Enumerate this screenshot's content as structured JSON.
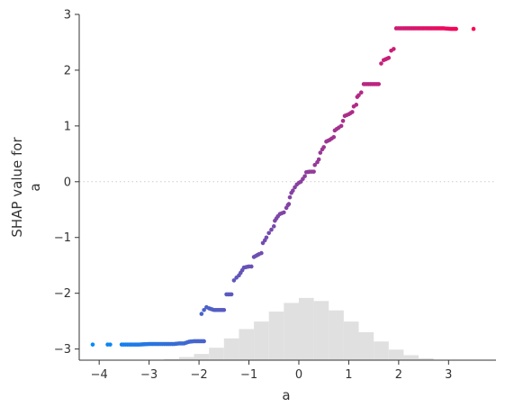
{
  "chart_data": {
    "type": "scatter",
    "title": "",
    "xlabel": "a",
    "ylabel_lines": [
      "SHAP value for",
      "a"
    ],
    "xlim": [
      -4.4,
      3.95
    ],
    "ylim": [
      -3.2,
      3.0
    ],
    "x_ticks": [
      -4,
      -3,
      -2,
      -1,
      0,
      1,
      2,
      3
    ],
    "y_ticks": [
      -3,
      -2,
      -1,
      0,
      1,
      2,
      3
    ],
    "x_tick_labels": [
      "−4",
      "−3",
      "−2",
      "−1",
      "0",
      "1",
      "2",
      "3"
    ],
    "y_tick_labels": [
      "−3",
      "−2",
      "−1",
      "0",
      "1",
      "2",
      "3"
    ],
    "zero_reference_line": true,
    "colormap": [
      "#008bfb",
      "#ff0052"
    ],
    "histogram_color": "#e0e0e0",
    "histogram": {
      "bin_edges": [
        -2.7,
        -2.4,
        -2.1,
        -1.8,
        -1.5,
        -1.2,
        -0.9,
        -0.6,
        -0.3,
        0.0,
        0.3,
        0.6,
        0.9,
        1.2,
        1.5,
        1.8,
        2.1,
        2.4,
        2.7
      ],
      "relative_heights": [
        0.02,
        0.05,
        0.1,
        0.2,
        0.35,
        0.5,
        0.62,
        0.78,
        0.92,
        1.0,
        0.95,
        0.8,
        0.62,
        0.45,
        0.3,
        0.17,
        0.08,
        0.03
      ]
    },
    "series": [
      {
        "points": [
          [
            -4.13,
            -2.92
          ],
          [
            -3.83,
            -2.92
          ],
          [
            -3.78,
            -2.92
          ],
          [
            -3.55,
            -2.92
          ],
          [
            -3.4,
            -2.92
          ],
          [
            -3.2,
            -2.92
          ],
          [
            -3.0,
            -2.91
          ],
          [
            -2.9,
            -2.91
          ],
          [
            -2.8,
            -2.91
          ],
          [
            -2.7,
            -2.91
          ],
          [
            -2.6,
            -2.91
          ],
          [
            -2.5,
            -2.91
          ],
          [
            -2.4,
            -2.9
          ],
          [
            -2.3,
            -2.9
          ],
          [
            -2.2,
            -2.87
          ],
          [
            -2.1,
            -2.86
          ],
          [
            -2.0,
            -2.86
          ],
          [
            -1.9,
            -2.86
          ],
          [
            -1.95,
            -2.37
          ],
          [
            -1.9,
            -2.3
          ],
          [
            -1.85,
            -2.25
          ],
          [
            -1.8,
            -2.27
          ],
          [
            -1.7,
            -2.3
          ],
          [
            -1.6,
            -2.3
          ],
          [
            -1.5,
            -2.3
          ],
          [
            -1.45,
            -2.02
          ],
          [
            -1.35,
            -2.02
          ],
          [
            -1.3,
            -1.77
          ],
          [
            -1.25,
            -1.72
          ],
          [
            -1.2,
            -1.68
          ],
          [
            -1.1,
            -1.54
          ],
          [
            -1.0,
            -1.52
          ],
          [
            -0.95,
            -1.52
          ],
          [
            -0.9,
            -1.35
          ],
          [
            -0.8,
            -1.3
          ],
          [
            -0.75,
            -1.28
          ],
          [
            -0.72,
            -1.1
          ],
          [
            -0.68,
            -1.05
          ],
          [
            -0.65,
            -1.0
          ],
          [
            -0.6,
            -0.92
          ],
          [
            -0.55,
            -0.86
          ],
          [
            -0.5,
            -0.8
          ],
          [
            -0.48,
            -0.7
          ],
          [
            -0.42,
            -0.62
          ],
          [
            -0.38,
            -0.58
          ],
          [
            -0.3,
            -0.55
          ],
          [
            -0.25,
            -0.47
          ],
          [
            -0.22,
            -0.42
          ],
          [
            -0.2,
            -0.4
          ],
          [
            -0.18,
            -0.28
          ],
          [
            -0.15,
            -0.2
          ],
          [
            -0.12,
            -0.16
          ],
          [
            -0.08,
            -0.1
          ],
          [
            -0.04,
            -0.05
          ],
          [
            0.0,
            -0.02
          ],
          [
            0.04,
            0.0
          ],
          [
            0.08,
            0.05
          ],
          [
            0.12,
            0.1
          ],
          [
            0.15,
            0.17
          ],
          [
            0.22,
            0.18
          ],
          [
            0.3,
            0.18
          ],
          [
            0.32,
            0.3
          ],
          [
            0.37,
            0.35
          ],
          [
            0.4,
            0.4
          ],
          [
            0.43,
            0.52
          ],
          [
            0.47,
            0.58
          ],
          [
            0.5,
            0.62
          ],
          [
            0.55,
            0.72
          ],
          [
            0.62,
            0.75
          ],
          [
            0.7,
            0.8
          ],
          [
            0.72,
            0.92
          ],
          [
            0.8,
            0.97
          ],
          [
            0.85,
            1.0
          ],
          [
            0.92,
            1.18
          ],
          [
            1.0,
            1.21
          ],
          [
            1.07,
            1.25
          ],
          [
            1.1,
            1.35
          ],
          [
            1.15,
            1.38
          ],
          [
            1.17,
            1.52
          ],
          [
            1.2,
            1.55
          ],
          [
            1.25,
            1.6
          ],
          [
            1.3,
            1.75
          ],
          [
            1.4,
            1.75
          ],
          [
            1.5,
            1.75
          ],
          [
            1.6,
            1.75
          ],
          [
            1.65,
            2.12
          ],
          [
            1.7,
            2.18
          ],
          [
            1.8,
            2.22
          ],
          [
            1.85,
            2.35
          ],
          [
            1.9,
            2.38
          ],
          [
            1.95,
            2.75
          ],
          [
            2.1,
            2.75
          ],
          [
            2.3,
            2.75
          ],
          [
            2.5,
            2.75
          ],
          [
            2.7,
            2.75
          ],
          [
            2.9,
            2.75
          ],
          [
            3.05,
            2.74
          ],
          [
            3.15,
            2.74
          ],
          [
            3.5,
            2.74
          ]
        ]
      }
    ]
  }
}
